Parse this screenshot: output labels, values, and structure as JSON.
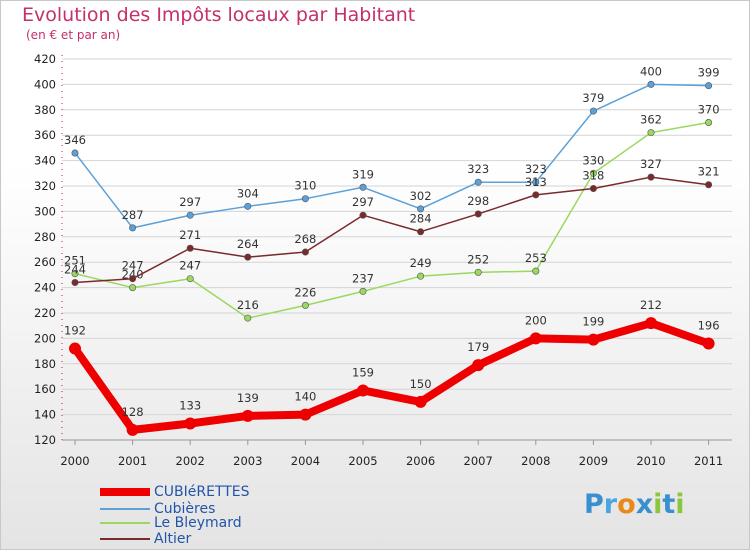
{
  "header": {
    "title": "Evolution des Impôts locaux par Habitant",
    "subtitle": "(en € et par an)"
  },
  "logo": {
    "letters": [
      "P",
      "r",
      "o",
      "x",
      "i",
      "t",
      "i"
    ],
    "colors": [
      "#3a8fd0",
      "#4aa6e0",
      "#e88a1a",
      "#3a8fd0",
      "#8cc63f",
      "#3a8fd0",
      "#8cc63f"
    ]
  },
  "chart_data": {
    "type": "line",
    "title": "Evolution des Impôts locaux par Habitant",
    "subtitle": "(en € et par an)",
    "xlabel": "",
    "ylabel": "",
    "categories": [
      "2000",
      "2001",
      "2002",
      "2003",
      "2004",
      "2005",
      "2006",
      "2007",
      "2008",
      "2009",
      "2010",
      "2011"
    ],
    "ylim": [
      120,
      420
    ],
    "yticks": [
      120,
      140,
      160,
      180,
      200,
      220,
      240,
      260,
      280,
      300,
      320,
      340,
      360,
      380,
      400,
      420
    ],
    "grid": "horizontal",
    "legend_position": "bottom-left",
    "series": [
      {
        "name": "CUBIéRETTES",
        "color": "#ee0000",
        "emphasis": true,
        "values": [
          192,
          128,
          133,
          139,
          140,
          159,
          150,
          179,
          200,
          199,
          212,
          196
        ]
      },
      {
        "name": "Cubières",
        "color": "#5ba0d8",
        "emphasis": false,
        "values": [
          346,
          287,
          297,
          304,
          310,
          319,
          302,
          323,
          323,
          379,
          400,
          399
        ]
      },
      {
        "name": "Le Bleymard",
        "color": "#9ad860",
        "emphasis": false,
        "values": [
          251,
          240,
          247,
          216,
          226,
          237,
          249,
          252,
          253,
          330,
          362,
          370
        ]
      },
      {
        "name": "Altier",
        "color": "#7a2a2a",
        "emphasis": false,
        "values": [
          244,
          247,
          271,
          264,
          268,
          297,
          284,
          298,
          313,
          318,
          327,
          321
        ]
      }
    ]
  }
}
